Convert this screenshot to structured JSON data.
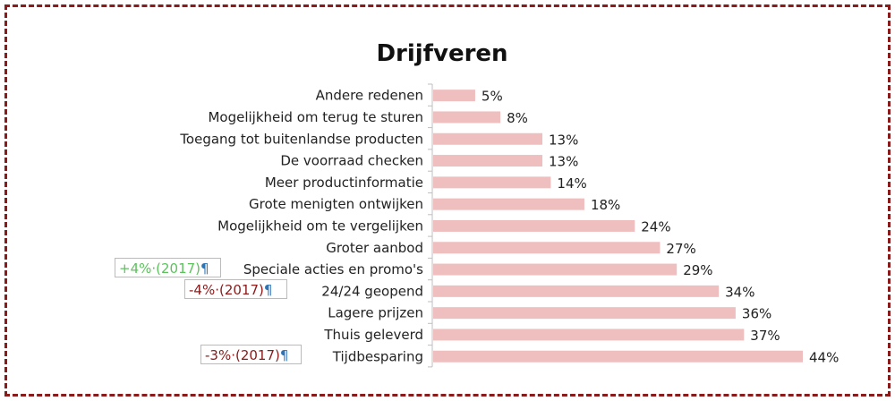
{
  "chart_data": {
    "type": "bar",
    "orientation": "horizontal",
    "title": "Drijfveren",
    "categories": [
      "Andere redenen",
      "Mogelijkheid om terug te sturen",
      "Toegang tot buitenlandse producten",
      "De voorraad checken",
      "Meer productinformatie",
      "Grote menigten ontwijken",
      "Mogelijkheid om te vergelijken",
      "Groter aanbod",
      "Speciale acties en promo's",
      "24/24 geopend",
      "Lagere prijzen",
      "Thuis geleverd",
      "Tijdbesparing"
    ],
    "values": [
      5,
      8,
      13,
      13,
      14,
      18,
      24,
      27,
      29,
      34,
      36,
      37,
      44
    ],
    "value_labels": [
      "5%",
      "8%",
      "13%",
      "13%",
      "14%",
      "18%",
      "24%",
      "27%",
      "29%",
      "34%",
      "36%",
      "37%",
      "44%"
    ],
    "xlim": [
      0,
      44
    ],
    "bar_color": "#efbfbf",
    "grid": false,
    "legend": "none",
    "annotations": [
      {
        "category": "Speciale acties en promo's",
        "text": "+4%·(2017)",
        "mark": "¶",
        "color": "#5cc25c"
      },
      {
        "category": "24/24 geopend",
        "text": "-4%·(2017)",
        "mark": "¶",
        "color": "#8b1a1a"
      },
      {
        "category": "Tijdbesparing",
        "text": "-3%·(2017)",
        "mark": "¶",
        "color": "#8b1a1a"
      }
    ]
  }
}
